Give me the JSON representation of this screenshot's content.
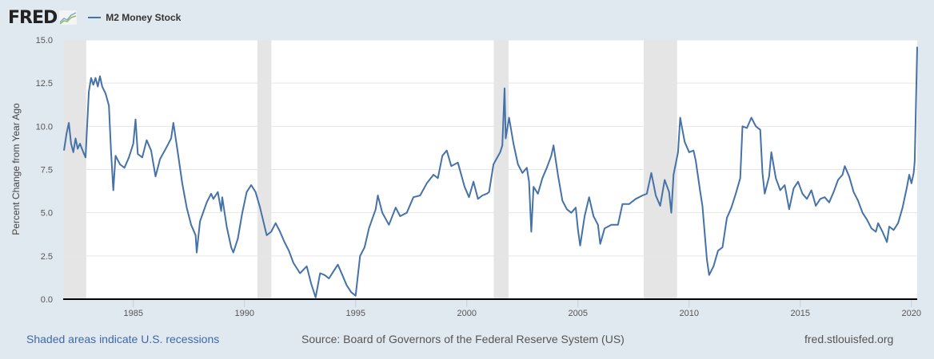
{
  "header": {
    "logo_text": "FRED",
    "logo_icon": "line-chart-icon",
    "legend_label": "M2 Money Stock",
    "series_color": "#4572a7"
  },
  "footer": {
    "recession_note": "Shaded areas indicate U.S. recessions",
    "source": "Source: Board of Governors of the Federal Reserve System (US)",
    "site": "fred.stlouisfed.org"
  },
  "chart_data": {
    "type": "line",
    "title": "M2 Money Stock",
    "xlabel": "",
    "ylabel": "Percent Change from Year Ago",
    "xlim": [
      1981.88,
      2020.26
    ],
    "ylim": [
      0,
      15
    ],
    "grid": true,
    "legend": "top-left",
    "x_ticks": [
      1985,
      1990,
      1995,
      2000,
      2005,
      2010,
      2015,
      2020
    ],
    "y_ticks": [
      0.0,
      2.5,
      5.0,
      7.5,
      10.0,
      12.5,
      15.0
    ],
    "y_tick_labels": [
      "0.0",
      "2.5",
      "5.0",
      "7.5",
      "10.0",
      "12.5",
      "15.0"
    ],
    "recessions": [
      [
        1981.88,
        1982.88
      ],
      [
        1990.58,
        1991.21
      ],
      [
        2001.21,
        2001.88
      ],
      [
        2007.96,
        2009.46
      ]
    ],
    "series": [
      {
        "name": "M2 Money Stock",
        "color": "#4572a7",
        "points": [
          [
            1981.88,
            8.6
          ],
          [
            1982.0,
            9.6
          ],
          [
            1982.1,
            10.2
          ],
          [
            1982.2,
            9.0
          ],
          [
            1982.3,
            8.5
          ],
          [
            1982.4,
            9.3
          ],
          [
            1982.5,
            8.7
          ],
          [
            1982.6,
            9.0
          ],
          [
            1982.75,
            8.5
          ],
          [
            1982.85,
            8.2
          ],
          [
            1983.0,
            12.0
          ],
          [
            1983.1,
            12.8
          ],
          [
            1983.2,
            12.4
          ],
          [
            1983.3,
            12.8
          ],
          [
            1983.4,
            12.3
          ],
          [
            1983.5,
            12.9
          ],
          [
            1983.6,
            12.3
          ],
          [
            1983.75,
            11.9
          ],
          [
            1983.9,
            11.2
          ],
          [
            1984.0,
            8.5
          ],
          [
            1984.1,
            6.3
          ],
          [
            1984.2,
            8.3
          ],
          [
            1984.4,
            7.8
          ],
          [
            1984.6,
            7.6
          ],
          [
            1984.8,
            8.2
          ],
          [
            1985.0,
            9.0
          ],
          [
            1985.1,
            10.4
          ],
          [
            1985.2,
            8.4
          ],
          [
            1985.4,
            8.2
          ],
          [
            1985.6,
            9.2
          ],
          [
            1985.8,
            8.6
          ],
          [
            1986.0,
            7.1
          ],
          [
            1986.2,
            8.1
          ],
          [
            1986.5,
            8.8
          ],
          [
            1986.7,
            9.3
          ],
          [
            1986.8,
            10.2
          ],
          [
            1987.0,
            8.5
          ],
          [
            1987.2,
            6.7
          ],
          [
            1987.4,
            5.3
          ],
          [
            1987.6,
            4.3
          ],
          [
            1987.8,
            3.7
          ],
          [
            1987.85,
            2.7
          ],
          [
            1988.0,
            4.5
          ],
          [
            1988.3,
            5.6
          ],
          [
            1988.5,
            6.1
          ],
          [
            1988.6,
            5.8
          ],
          [
            1988.8,
            6.2
          ],
          [
            1988.95,
            5.1
          ],
          [
            1989.0,
            5.9
          ],
          [
            1989.2,
            4.2
          ],
          [
            1989.4,
            3.0
          ],
          [
            1989.5,
            2.7
          ],
          [
            1989.7,
            3.5
          ],
          [
            1989.9,
            5.0
          ],
          [
            1990.1,
            6.2
          ],
          [
            1990.3,
            6.6
          ],
          [
            1990.5,
            6.2
          ],
          [
            1990.7,
            5.3
          ],
          [
            1991.0,
            3.7
          ],
          [
            1991.2,
            3.9
          ],
          [
            1991.4,
            4.4
          ],
          [
            1991.6,
            3.9
          ],
          [
            1991.8,
            3.3
          ],
          [
            1992.0,
            2.8
          ],
          [
            1992.2,
            2.1
          ],
          [
            1992.5,
            1.5
          ],
          [
            1992.8,
            1.9
          ],
          [
            1993.0,
            0.9
          ],
          [
            1993.2,
            0.1
          ],
          [
            1993.4,
            1.5
          ],
          [
            1993.6,
            1.4
          ],
          [
            1993.8,
            1.2
          ],
          [
            1994.0,
            1.6
          ],
          [
            1994.2,
            2.0
          ],
          [
            1994.4,
            1.4
          ],
          [
            1994.6,
            0.8
          ],
          [
            1994.8,
            0.4
          ],
          [
            1995.0,
            0.2
          ],
          [
            1995.2,
            2.5
          ],
          [
            1995.4,
            3.0
          ],
          [
            1995.6,
            4.1
          ],
          [
            1995.9,
            5.2
          ],
          [
            1996.0,
            6.0
          ],
          [
            1996.2,
            5.0
          ],
          [
            1996.5,
            4.3
          ],
          [
            1996.8,
            5.3
          ],
          [
            1997.0,
            4.8
          ],
          [
            1997.3,
            5.0
          ],
          [
            1997.6,
            5.9
          ],
          [
            1997.9,
            6.0
          ],
          [
            1998.2,
            6.7
          ],
          [
            1998.5,
            7.2
          ],
          [
            1998.7,
            7.0
          ],
          [
            1998.9,
            8.3
          ],
          [
            1999.1,
            8.6
          ],
          [
            1999.3,
            7.7
          ],
          [
            1999.6,
            7.9
          ],
          [
            1999.9,
            6.5
          ],
          [
            2000.1,
            5.9
          ],
          [
            2000.3,
            6.8
          ],
          [
            2000.5,
            5.8
          ],
          [
            2000.7,
            6.0
          ],
          [
            2000.9,
            6.1
          ],
          [
            2001.0,
            6.2
          ],
          [
            2001.2,
            7.8
          ],
          [
            2001.5,
            8.5
          ],
          [
            2001.6,
            8.9
          ],
          [
            2001.7,
            12.2
          ],
          [
            2001.75,
            9.3
          ],
          [
            2001.9,
            10.5
          ],
          [
            2002.1,
            9.0
          ],
          [
            2002.3,
            7.8
          ],
          [
            2002.5,
            7.3
          ],
          [
            2002.7,
            7.6
          ],
          [
            2002.8,
            6.8
          ],
          [
            2002.9,
            3.9
          ],
          [
            2003.0,
            6.5
          ],
          [
            2003.2,
            6.1
          ],
          [
            2003.4,
            7.0
          ],
          [
            2003.6,
            7.6
          ],
          [
            2003.8,
            8.3
          ],
          [
            2003.9,
            8.9
          ],
          [
            2004.1,
            7.2
          ],
          [
            2004.3,
            5.7
          ],
          [
            2004.5,
            5.2
          ],
          [
            2004.7,
            5.0
          ],
          [
            2004.9,
            5.3
          ],
          [
            2005.0,
            4.0
          ],
          [
            2005.1,
            3.1
          ],
          [
            2005.3,
            4.8
          ],
          [
            2005.5,
            5.9
          ],
          [
            2005.7,
            4.8
          ],
          [
            2005.9,
            4.3
          ],
          [
            2006.0,
            3.2
          ],
          [
            2006.2,
            4.1
          ],
          [
            2006.5,
            4.3
          ],
          [
            2006.8,
            4.3
          ],
          [
            2007.0,
            5.5
          ],
          [
            2007.3,
            5.5
          ],
          [
            2007.6,
            5.8
          ],
          [
            2007.9,
            6.0
          ],
          [
            2008.1,
            6.1
          ],
          [
            2008.3,
            7.3
          ],
          [
            2008.5,
            6.0
          ],
          [
            2008.7,
            5.4
          ],
          [
            2008.9,
            6.9
          ],
          [
            2009.1,
            6.2
          ],
          [
            2009.2,
            5.0
          ],
          [
            2009.3,
            7.2
          ],
          [
            2009.5,
            8.5
          ],
          [
            2009.6,
            10.5
          ],
          [
            2009.8,
            9.1
          ],
          [
            2010.0,
            8.5
          ],
          [
            2010.2,
            8.6
          ],
          [
            2010.3,
            8.0
          ],
          [
            2010.5,
            6.2
          ],
          [
            2010.6,
            5.4
          ],
          [
            2010.8,
            2.3
          ],
          [
            2010.9,
            1.4
          ],
          [
            2011.1,
            1.9
          ],
          [
            2011.3,
            2.8
          ],
          [
            2011.5,
            3.0
          ],
          [
            2011.7,
            4.7
          ],
          [
            2011.9,
            5.3
          ],
          [
            2012.1,
            6.1
          ],
          [
            2012.3,
            7.0
          ],
          [
            2012.4,
            10.0
          ],
          [
            2012.6,
            9.9
          ],
          [
            2012.8,
            10.5
          ],
          [
            2013.0,
            10.0
          ],
          [
            2013.2,
            9.8
          ],
          [
            2013.3,
            7.3
          ],
          [
            2013.4,
            6.1
          ],
          [
            2013.6,
            7.1
          ],
          [
            2013.7,
            8.5
          ],
          [
            2013.9,
            7.0
          ],
          [
            2014.1,
            6.3
          ],
          [
            2014.3,
            6.6
          ],
          [
            2014.5,
            5.2
          ],
          [
            2014.7,
            6.4
          ],
          [
            2014.9,
            6.8
          ],
          [
            2015.1,
            6.1
          ],
          [
            2015.3,
            5.8
          ],
          [
            2015.5,
            6.3
          ],
          [
            2015.7,
            5.4
          ],
          [
            2015.9,
            5.8
          ],
          [
            2016.1,
            5.9
          ],
          [
            2016.3,
            5.6
          ],
          [
            2016.5,
            6.2
          ],
          [
            2016.7,
            6.9
          ],
          [
            2016.9,
            7.2
          ],
          [
            2017.0,
            7.7
          ],
          [
            2017.2,
            7.1
          ],
          [
            2017.4,
            6.2
          ],
          [
            2017.6,
            5.7
          ],
          [
            2017.8,
            5.0
          ],
          [
            2018.0,
            4.6
          ],
          [
            2018.2,
            4.1
          ],
          [
            2018.4,
            3.9
          ],
          [
            2018.5,
            4.4
          ],
          [
            2018.7,
            3.9
          ],
          [
            2018.9,
            3.3
          ],
          [
            2019.0,
            4.2
          ],
          [
            2019.2,
            4.0
          ],
          [
            2019.4,
            4.4
          ],
          [
            2019.6,
            5.3
          ],
          [
            2019.8,
            6.5
          ],
          [
            2019.9,
            7.2
          ],
          [
            2020.0,
            6.7
          ],
          [
            2020.1,
            7.3
          ],
          [
            2020.15,
            8.0
          ],
          [
            2020.2,
            11.0
          ],
          [
            2020.26,
            14.6
          ]
        ]
      }
    ]
  }
}
